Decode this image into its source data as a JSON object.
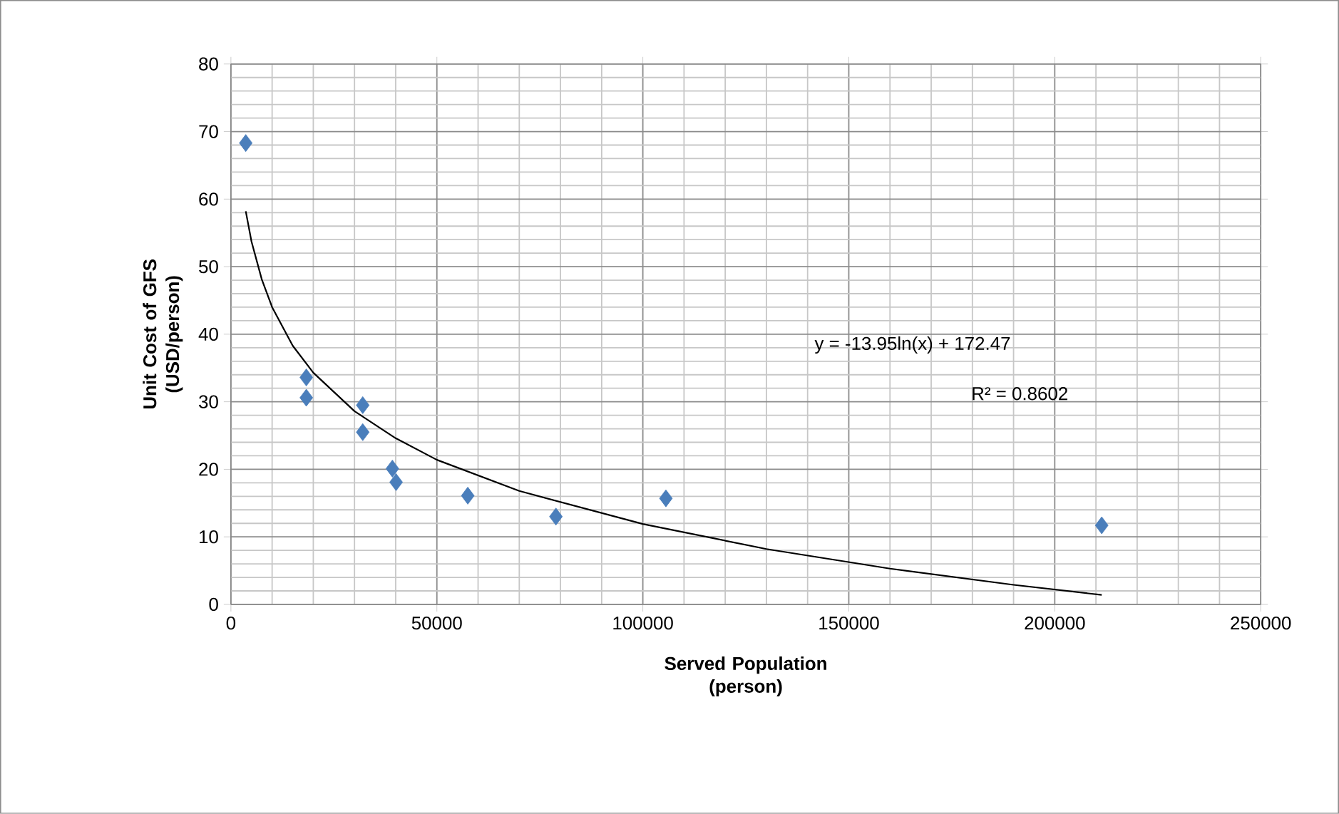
{
  "chart_data": {
    "type": "scatter",
    "xlabel": "Served Population (person)",
    "ylabel": "Unit Cost of GFS (USD/person)",
    "xlim": [
      0,
      250000
    ],
    "ylim": [
      0,
      80
    ],
    "xticks": [
      0,
      50000,
      100000,
      150000,
      200000,
      250000
    ],
    "yticks": [
      0,
      10,
      20,
      30,
      40,
      50,
      60,
      70,
      80
    ],
    "grid": true,
    "series": [
      {
        "color": "#4a7ebb",
        "marker": "diamond",
        "x": [
          3600,
          18300,
          18300,
          32000,
          32000,
          39200,
          40100,
          57500,
          78900,
          105600,
          211400
        ],
        "values": [
          68.3,
          33.6,
          30.6,
          29.5,
          25.5,
          20.1,
          18.1,
          16.1,
          13.0,
          15.7,
          11.7
        ]
      },
      {
        "type": "line",
        "color": "#000000",
        "marker": "none",
        "line_style": "solid",
        "x": [
          3600,
          5000,
          7500,
          10000,
          15000,
          20000,
          30000,
          40000,
          50000,
          70000,
          100000,
          130000,
          160000,
          190000,
          211400
        ],
        "values": [
          58.2,
          53.7,
          48.1,
          44.0,
          38.3,
          34.3,
          28.6,
          24.6,
          21.4,
          16.8,
          11.9,
          8.2,
          5.3,
          2.9,
          1.4
        ]
      }
    ],
    "annotations": [
      "y = -13.95ln(x) + 172.47",
      "R² = 0.8602"
    ]
  }
}
